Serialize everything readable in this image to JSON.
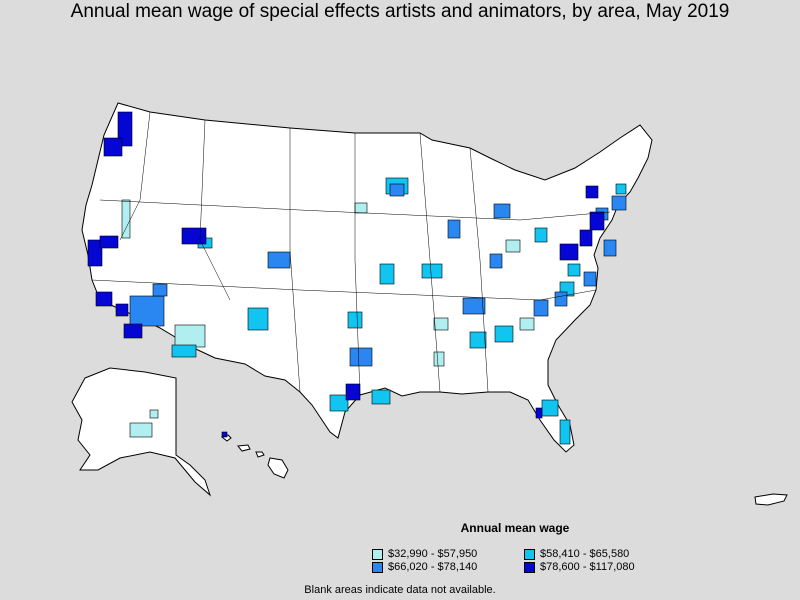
{
  "title": "Annual mean wage of special effects artists and animators, by area, May 2019",
  "legend": {
    "title": "Annual mean wage",
    "items": [
      {
        "label": "$32,990 - $57,950",
        "color": "#b0eef0"
      },
      {
        "label": "$58,410 - $65,580",
        "color": "#12c4f0"
      },
      {
        "label": "$66,020 - $78,140",
        "color": "#2a86f0"
      },
      {
        "label": "$78,600 - $117,080",
        "color": "#0606d4"
      }
    ]
  },
  "note": "Blank areas indicate data not available.",
  "colors": {
    "background": "#dcdcdc",
    "land": "#ffffff",
    "border": "#000000"
  }
}
